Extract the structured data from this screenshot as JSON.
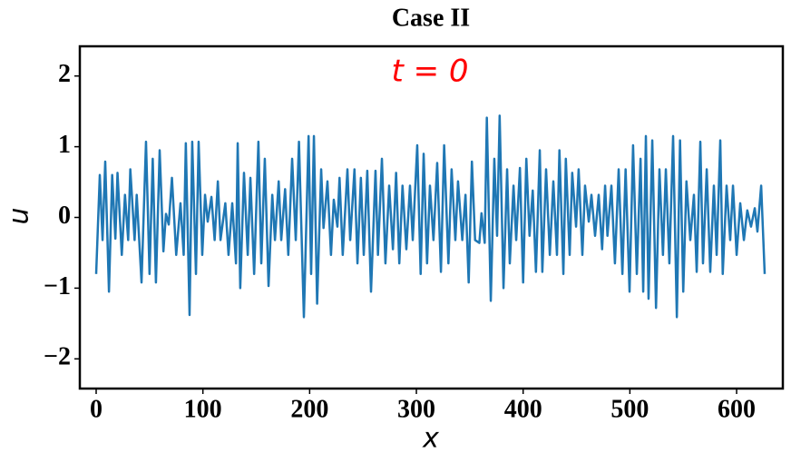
{
  "chart_data": {
    "type": "line",
    "title": "Case II",
    "xlabel": "x",
    "ylabel": "u",
    "annotation": "t = 0",
    "annotation_color": "#ff0000",
    "xlim": [
      -15.3,
      643.3
    ],
    "ylim": [
      -2.42,
      2.42
    ],
    "xticks": [
      0,
      100,
      200,
      300,
      400,
      500,
      600
    ],
    "yticks": [
      {
        "value": -2,
        "label": "−2"
      },
      {
        "value": -1,
        "label": "−1"
      },
      0,
      1,
      2
    ],
    "grid": false,
    "x": [
      0,
      3.4,
      6,
      8.5,
      12,
      15,
      18,
      20,
      24,
      27,
      30,
      32,
      36,
      38,
      42.5,
      46.7,
      50,
      53,
      56,
      59.5,
      63,
      65.4,
      68,
      71,
      75,
      79,
      82,
      84,
      87.5,
      90,
      93.5,
      96,
      99.4,
      102,
      104.5,
      108,
      111,
      114,
      116.5,
      121,
      124,
      127.5,
      131,
      132.6,
      135,
      138.5,
      142,
      144.5,
      148,
      152,
      154.7,
      158,
      161.5,
      165,
      167.5,
      171,
      173.4,
      177,
      180,
      183.6,
      187,
      190,
      194.6,
      199,
      201.4,
      204,
      207,
      210.8,
      213,
      216.7,
      220,
      222.6,
      226,
      228,
      231,
      235.4,
      238,
      242,
      244.8,
      248,
      250.7,
      254,
      257.5,
      261.7,
      264,
      267.7,
      271,
      274.5,
      278,
      281,
      284,
      287,
      290.6,
      294,
      296.6,
      300.8,
      304,
      306.8,
      310,
      312.7,
      316,
      319.5,
      323,
      326,
      330,
      333,
      336.5,
      339,
      343,
      346,
      349,
      352,
      355,
      359,
      361,
      364,
      366,
      369.7,
      373,
      375.6,
      378,
      381.6,
      385,
      387.5,
      391,
      393.5,
      397,
      400,
      403,
      406,
      409,
      412,
      415.6,
      418,
      421.5,
      425,
      428.3,
      431.7,
      434,
      437.7,
      440,
      443.6,
      446,
      449.6,
      452,
      455.5,
      458,
      461.5,
      464,
      467.4,
      470.8,
      474,
      476.8,
      479,
      482.7,
      486,
      489.5,
      493,
      496,
      499.7,
      503,
      506.5,
      510,
      512.5,
      515,
      517.5,
      521,
      524.5,
      527.7,
      531,
      533.7,
      537,
      540.5,
      544,
      547,
      550,
      553,
      556.6,
      560,
      562.6,
      566,
      568.5,
      572,
      575.3,
      578.7,
      581.3,
      584.7,
      587,
      590.6,
      594,
      596.6,
      600,
      603.4,
      606.8,
      610,
      613.5,
      617,
      619.5,
      623,
      626.3
    ],
    "series": [
      {
        "color": "#1f77b4",
        "values": [
          -0.8,
          0.6,
          -0.32,
          0.79,
          -1.05,
          0.6,
          -0.3,
          0.63,
          -0.53,
          0.32,
          -0.32,
          0.68,
          -0.32,
          0.32,
          -0.92,
          1.07,
          -0.8,
          0.83,
          -0.92,
          0.95,
          -0.48,
          0.05,
          -0.1,
          0.56,
          -0.53,
          0.2,
          -0.53,
          1.05,
          -1.38,
          1.07,
          -0.8,
          1.07,
          -0.53,
          0.32,
          -0.06,
          0.29,
          -0.32,
          0.51,
          -0.32,
          0.2,
          -0.53,
          0.2,
          -0.65,
          1.05,
          -1.0,
          0.63,
          -0.53,
          0.56,
          -0.8,
          1.07,
          -0.65,
          0.83,
          -0.97,
          0.32,
          -0.32,
          0.51,
          -0.32,
          0.4,
          -0.53,
          0.83,
          -0.32,
          1.07,
          -1.41,
          1.15,
          -0.8,
          1.15,
          -1.22,
          0.68,
          -0.15,
          0.51,
          -0.53,
          0.25,
          -0.13,
          0.56,
          -0.53,
          0.68,
          -0.32,
          0.68,
          -0.65,
          0.56,
          -0.53,
          0.66,
          -1.05,
          0.66,
          -0.53,
          0.83,
          -0.65,
          0.45,
          -0.45,
          0.63,
          -0.65,
          0.45,
          -0.45,
          0.45,
          -0.32,
          1.02,
          -0.8,
          0.9,
          -0.65,
          0.45,
          -0.32,
          0.77,
          -0.77,
          1.02,
          -0.65,
          0.68,
          -0.32,
          0.51,
          -0.32,
          0.32,
          -0.92,
          0.79,
          -0.32,
          -0.36,
          0.06,
          -0.36,
          1.41,
          -1.18,
          0.83,
          -0.26,
          1.44,
          -1.0,
          0.68,
          -0.65,
          0.45,
          -0.32,
          0.7,
          -0.92,
          0.83,
          -0.26,
          0.38,
          -0.77,
          0.95,
          -0.77,
          0.68,
          -0.53,
          0.51,
          -0.53,
          0.95,
          -0.8,
          0.83,
          -0.53,
          0.63,
          -0.13,
          0.68,
          -0.53,
          0.45,
          -0.06,
          0.32,
          -0.26,
          0.32,
          -0.45,
          0.45,
          -0.26,
          0.45,
          -0.65,
          0.68,
          -0.8,
          0.68,
          -1.05,
          1.02,
          -0.8,
          0.83,
          -1.05,
          1.15,
          -1.15,
          1.09,
          -1.28,
          0.68,
          -0.53,
          0.68,
          -0.65,
          1.15,
          -1.41,
          1.09,
          -1.05,
          0.51,
          -0.32,
          0.32,
          -0.77,
          1.07,
          -0.65,
          0.68,
          -0.77,
          0.45,
          -0.53,
          1.09,
          -0.8,
          0.45,
          -0.32,
          0.45,
          -0.53,
          0.2,
          -0.32,
          0.1,
          -0.13,
          0.13,
          -0.2,
          0.45,
          -0.8
        ]
      }
    ]
  }
}
